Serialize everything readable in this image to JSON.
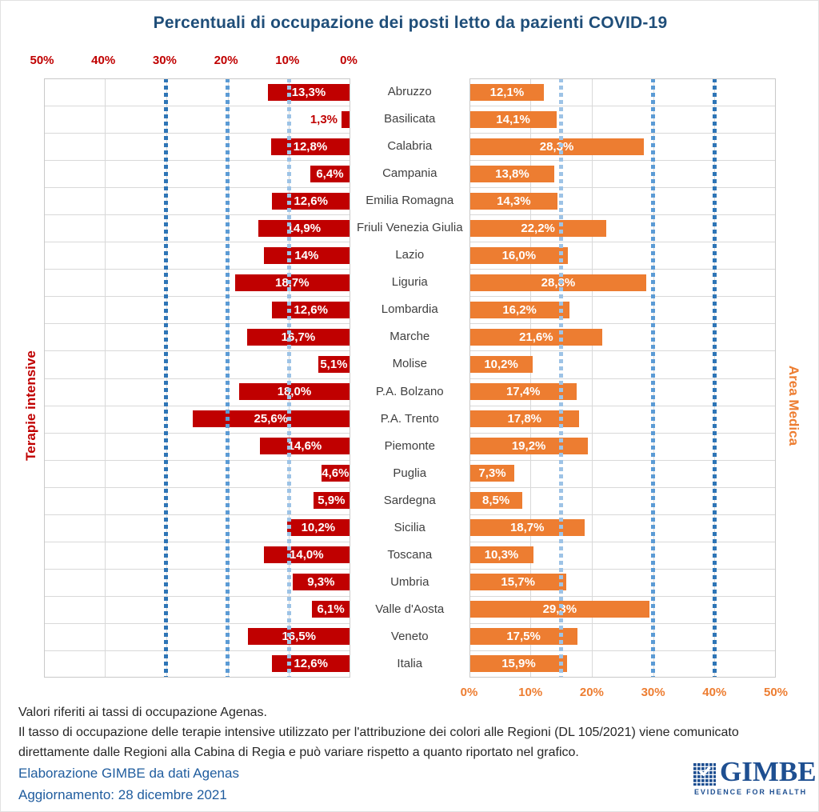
{
  "title": "Percentuali di occupazione dei posti letto da pazienti COVID-19",
  "chart_data": {
    "type": "bar",
    "subtype": "diverging-horizontal",
    "categories": [
      "Abruzzo",
      "Basilicata",
      "Calabria",
      "Campania",
      "Emilia Romagna",
      "Friuli Venezia Giulia",
      "Lazio",
      "Liguria",
      "Lombardia",
      "Marche",
      "Molise",
      "P.A. Bolzano",
      "P.A. Trento",
      "Piemonte",
      "Puglia",
      "Sardegna",
      "Sicilia",
      "Toscana",
      "Umbria",
      "Valle d'Aosta",
      "Veneto",
      "Italia"
    ],
    "series": [
      {
        "name": "Terapie intensive",
        "side": "left",
        "color": "#C00000",
        "values": [
          13.3,
          1.3,
          12.8,
          6.4,
          12.6,
          14.9,
          14,
          18.7,
          12.6,
          16.7,
          5.1,
          18.0,
          25.6,
          14.6,
          4.6,
          5.9,
          10.2,
          14.0,
          9.3,
          6.1,
          16.5,
          12.6
        ],
        "labels": [
          "13,3%",
          "1,3%",
          "12,8%",
          "6,4%",
          "12,6%",
          "14,9%",
          "14%",
          "18,7%",
          "12,6%",
          "16,7%",
          "5,1%",
          "18,0%",
          "25,6%",
          "14,6%",
          "4,6%",
          "5,9%",
          "10,2%",
          "14,0%",
          "9,3%",
          "6,1%",
          "16,5%",
          "12,6%"
        ]
      },
      {
        "name": "Area Medica",
        "side": "right",
        "color": "#ED7D31",
        "values": [
          12.1,
          14.1,
          28.3,
          13.8,
          14.3,
          22.2,
          16.0,
          28.8,
          16.2,
          21.6,
          10.2,
          17.4,
          17.8,
          19.2,
          7.3,
          8.5,
          18.7,
          10.3,
          15.7,
          29.3,
          17.5,
          15.9
        ],
        "labels": [
          "12,1%",
          "14,1%",
          "28,3%",
          "13,8%",
          "14,3%",
          "22,2%",
          "16,0%",
          "28,8%",
          "16,2%",
          "21,6%",
          "10,2%",
          "17,4%",
          "17,8%",
          "19,2%",
          "7,3%",
          "8,5%",
          "18,7%",
          "10,3%",
          "15,7%",
          "29,3%",
          "17,5%",
          "15,9%"
        ]
      }
    ],
    "xlim": [
      0,
      50
    ],
    "top_axis_ticks": [
      "50%",
      "40%",
      "30%",
      "20%",
      "10%",
      "0%"
    ],
    "bottom_axis_ticks": [
      "0%",
      "10%",
      "20%",
      "30%",
      "40%",
      "50%"
    ],
    "gridline_values": [
      10,
      20,
      30,
      40
    ],
    "thresholds_left": [
      {
        "value": 10,
        "color": "#9DC3E6"
      },
      {
        "value": 20,
        "color": "#5B9BD5"
      },
      {
        "value": 30,
        "color": "#2E75B6"
      }
    ],
    "thresholds_right": [
      {
        "value": 15,
        "color": "#9DC3E6"
      },
      {
        "value": 30,
        "color": "#5B9BD5"
      },
      {
        "value": 40,
        "color": "#2E75B6"
      }
    ],
    "grid": true,
    "legend_position": "side-titles"
  },
  "axis_titles": {
    "left": "Terapie intensive",
    "right": "Area Medica"
  },
  "footnotes": [
    "Valori riferiti ai tassi di occupazione Agenas.",
    "Il tasso di occupazione delle terapie intensive utilizzato per l'attribuzione dei colori alle Regioni (DL 105/2021) viene comunicato",
    "direttamente dalle Regioni alla Cabina di Regia e può variare rispetto a quanto riportato nel grafico."
  ],
  "source_text": "Elaborazione GIMBE da dati Agenas",
  "update_text": "Aggiornamento: 28 dicembre 2021",
  "logo": {
    "name": "GIMBE",
    "tagline": "EVIDENCE FOR HEALTH",
    "icon": "checkmark-grid-icon",
    "color": "#1E4F91"
  },
  "colors": {
    "title": "#1F4E79",
    "left_series": "#C00000",
    "right_series": "#ED7D31",
    "top_axis_text": "#C00000",
    "bottom_axis_text": "#ED7D31",
    "gridline": "#D9D9D9",
    "region_label": "#404040",
    "footnote_text": "#262626",
    "source_text": "#1F5C9E"
  }
}
